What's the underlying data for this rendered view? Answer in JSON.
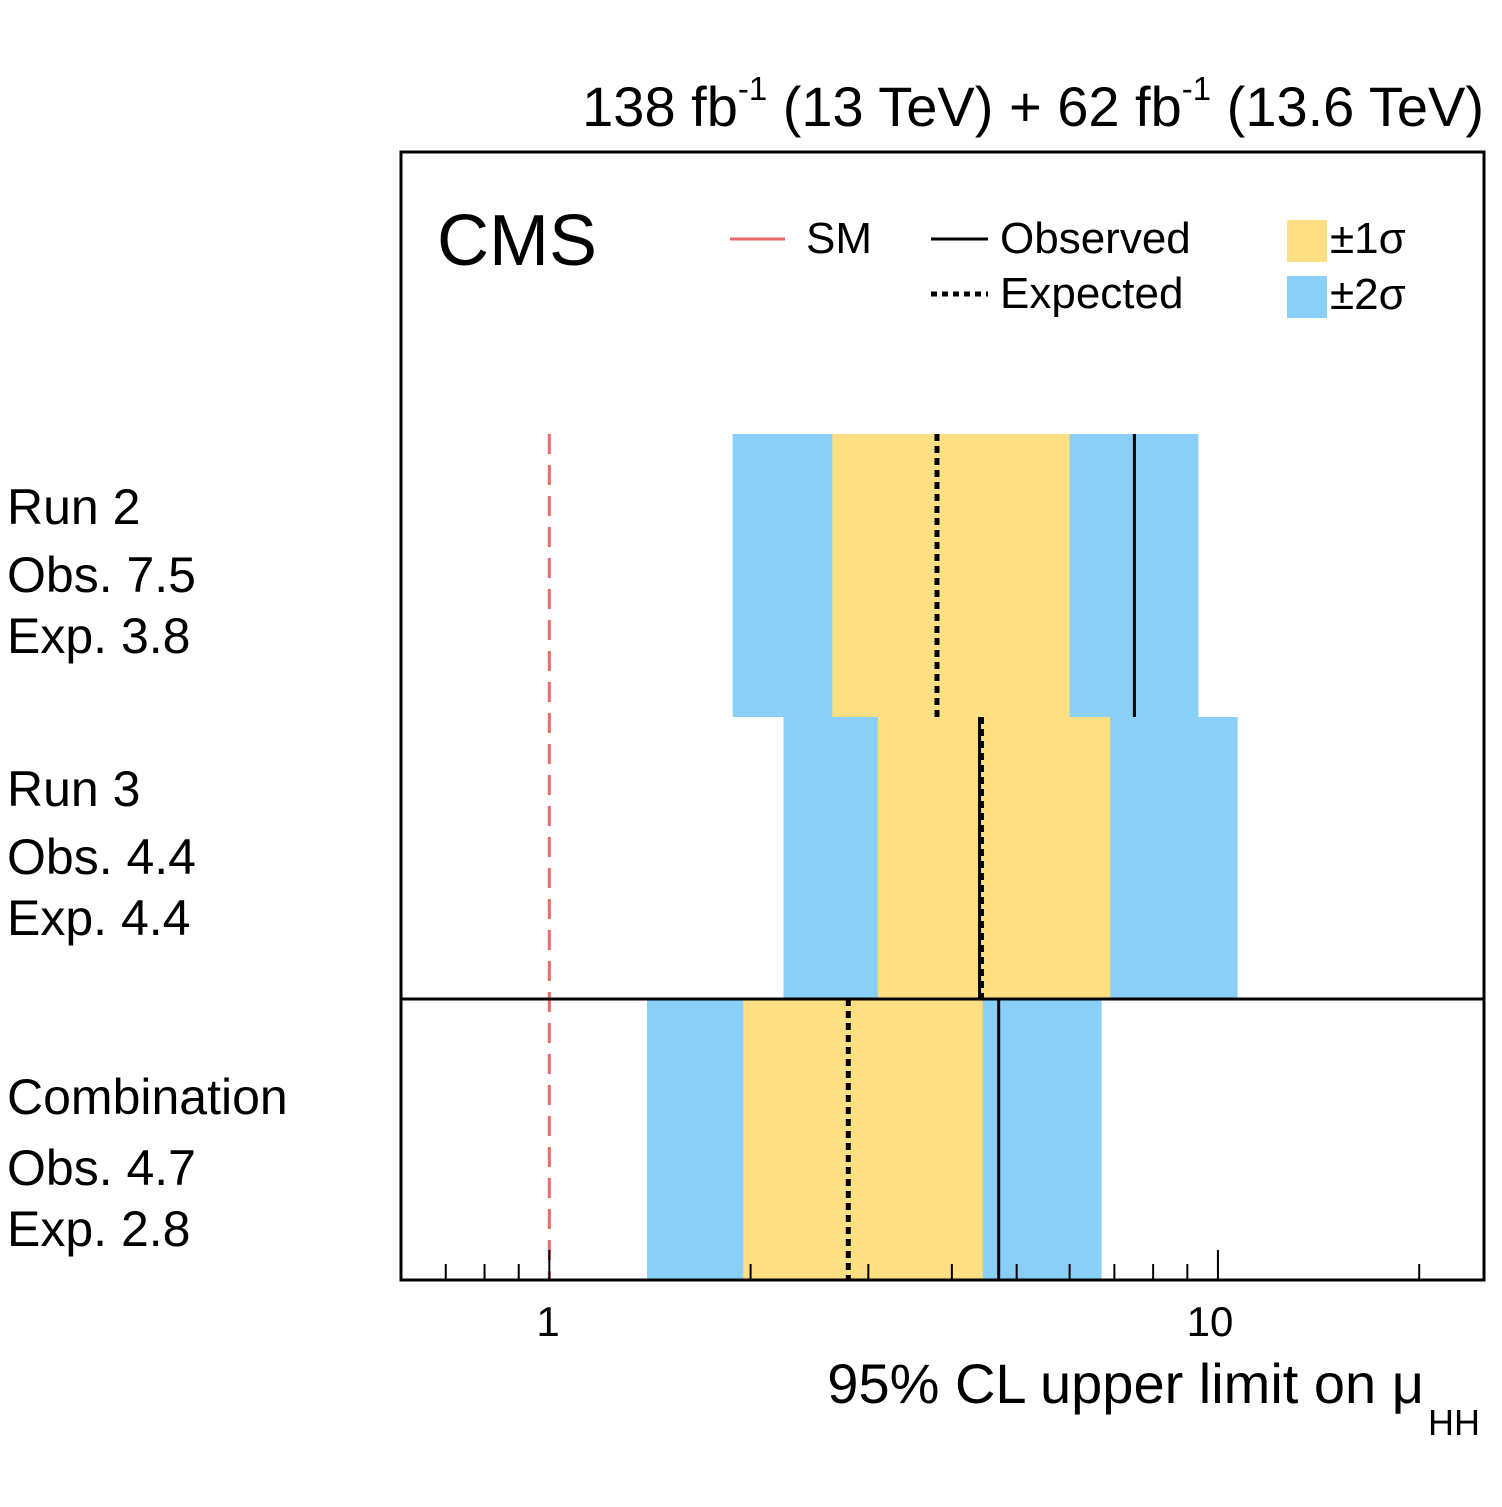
{
  "header": {
    "lumi1": "138 fb",
    "lumi1_exp": "-1",
    "energy1": " (13 TeV) + 62 fb",
    "lumi2_exp": "-1",
    "energy2": " (13.6 TeV)"
  },
  "experiment_label": "CMS",
  "legend": {
    "sm": "SM",
    "observed": "Observed",
    "expected": "Expected",
    "one_sigma": "±1σ",
    "two_sigma": "±2σ"
  },
  "colors": {
    "one_sigma": "#fedf83",
    "two_sigma": "#89cff8",
    "sm_line": "#ee6a6a",
    "lines": "#000000"
  },
  "chart_data": {
    "type": "band",
    "x_scale": "log",
    "xlim": [
      0.6,
      25
    ],
    "xlabel": "95% CL upper limit on μ",
    "xlabel_sub": "HH",
    "x_major_ticks": [
      1,
      10
    ],
    "x_tick_labels": [
      "1",
      "10"
    ],
    "sm_reference": 1,
    "rows": [
      {
        "label": "Run 2",
        "obs_text": "Obs. 7.5",
        "exp_text": "Exp. 3.8",
        "observed": 7.5,
        "expected": 3.8,
        "band_1sigma": [
          2.65,
          6.0
        ],
        "band_2sigma": [
          1.88,
          9.35
        ]
      },
      {
        "label": "Run 3",
        "obs_text": "Obs. 4.4",
        "exp_text": "Exp. 4.4",
        "observed": 4.4,
        "expected": 4.43,
        "band_1sigma": [
          3.1,
          6.9
        ],
        "band_2sigma": [
          2.24,
          10.7
        ]
      },
      {
        "label": "Combination",
        "obs_text": "Obs. 4.7",
        "exp_text": "Exp. 2.8",
        "observed": 4.7,
        "expected": 2.8,
        "band_1sigma": [
          1.95,
          4.45
        ],
        "band_2sigma": [
          1.4,
          6.7
        ]
      }
    ]
  }
}
